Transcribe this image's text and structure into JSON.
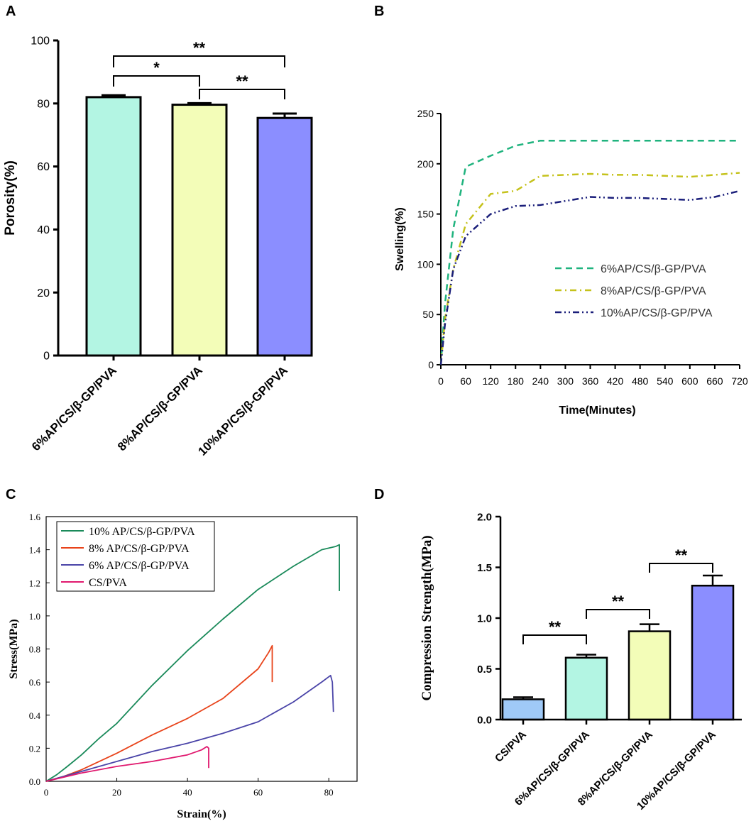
{
  "chart_data": [
    {
      "panel": "A",
      "type": "bar",
      "ylabel": "Porosity(%)",
      "ylim": [
        0,
        100
      ],
      "yticks": [
        "0",
        "20",
        "40",
        "60",
        "80",
        "100"
      ],
      "categories": [
        "6%AP/CS/β-GP/PVA",
        "8%AP/CS/β-GP/PVA",
        "10%AP/CS/β-GP/PVA"
      ],
      "values": [
        82,
        79.6,
        75.4
      ],
      "errors": [
        0.6,
        0.5,
        1.4
      ],
      "colors": [
        "#b3f5e3",
        "#f3fdb8",
        "#8b8eff"
      ],
      "significance": [
        {
          "from": 0,
          "to": 1,
          "label": "*"
        },
        {
          "from": 1,
          "to": 2,
          "label": "**"
        },
        {
          "from": 0,
          "to": 2,
          "label": "**"
        }
      ]
    },
    {
      "panel": "B",
      "type": "line",
      "xlabel": "Time(Minutes)",
      "ylabel": "Swelling(%)",
      "xlim": [
        0,
        720
      ],
      "ylim": [
        0,
        250
      ],
      "xticks": [
        "0",
        "60",
        "120",
        "180",
        "240",
        "300",
        "360",
        "420",
        "480",
        "540",
        "600",
        "660",
        "720"
      ],
      "yticks": [
        "0",
        "50",
        "100",
        "150",
        "200",
        "250"
      ],
      "series": [
        {
          "name": "6%AP/CS/β-GP/PVA",
          "color": "#1fb37e",
          "dash": "dash",
          "x": [
            0,
            10,
            30,
            60,
            120,
            180,
            240,
            300,
            360,
            420,
            480,
            540,
            600,
            660,
            720
          ],
          "y": [
            0,
            60,
            135,
            197,
            208,
            218,
            223,
            223,
            223,
            223,
            223,
            223,
            223,
            223,
            223
          ]
        },
        {
          "name": "8%AP/CS/β-GP/PVA",
          "color": "#c5c21c",
          "dash": "dashdot",
          "x": [
            0,
            10,
            30,
            60,
            120,
            180,
            240,
            300,
            360,
            420,
            480,
            540,
            600,
            660,
            720
          ],
          "y": [
            0,
            45,
            95,
            140,
            170,
            173,
            188,
            189,
            190,
            189,
            189,
            188,
            187,
            189,
            191
          ]
        },
        {
          "name": "10%AP/CS/β-GP/PVA",
          "color": "#1a1e7a",
          "dash": "dashdotdot",
          "x": [
            0,
            10,
            30,
            60,
            120,
            180,
            240,
            300,
            360,
            420,
            480,
            540,
            600,
            660,
            720
          ],
          "y": [
            0,
            40,
            95,
            128,
            150,
            158,
            159,
            163,
            167,
            166,
            166,
            165,
            164,
            167,
            173
          ]
        }
      ]
    },
    {
      "panel": "C",
      "type": "line",
      "xlabel": "Strain(%)",
      "ylabel": "Stress(MPa)",
      "xlim": [
        0,
        88
      ],
      "ylim": [
        0,
        1.6
      ],
      "xticks": [
        "0",
        "20",
        "40",
        "60",
        "80"
      ],
      "yticks": [
        "0.0",
        "0.2",
        "0.4",
        "0.6",
        "0.8",
        "1.0",
        "1.2",
        "1.4",
        "1.6"
      ],
      "series": [
        {
          "name": "10% AP/CS/β-GP/PVA",
          "color": "#1a8a5a",
          "x": [
            0,
            3,
            6,
            10,
            15,
            20,
            30,
            40,
            50,
            60,
            70,
            78,
            82,
            83,
            83
          ],
          "y": [
            0,
            0.04,
            0.09,
            0.16,
            0.26,
            0.35,
            0.58,
            0.79,
            0.98,
            1.16,
            1.3,
            1.4,
            1.42,
            1.43,
            1.15
          ]
        },
        {
          "name": "8% AP/CS/β-GP/PVA",
          "color": "#e8431a",
          "x": [
            0,
            5,
            10,
            20,
            30,
            40,
            50,
            60,
            63,
            64,
            64
          ],
          "y": [
            0,
            0.03,
            0.07,
            0.17,
            0.28,
            0.38,
            0.5,
            0.68,
            0.78,
            0.82,
            0.6
          ]
        },
        {
          "name": "6% AP/CS/β-GP/PVA",
          "color": "#4a44a8",
          "x": [
            0,
            5,
            10,
            20,
            30,
            40,
            50,
            60,
            70,
            78,
            80.5,
            81,
            81.3
          ],
          "y": [
            0,
            0.03,
            0.06,
            0.12,
            0.18,
            0.23,
            0.29,
            0.36,
            0.48,
            0.6,
            0.64,
            0.6,
            0.42
          ]
        },
        {
          "name": "CS/PVA",
          "color": "#e0186e",
          "x": [
            0,
            10,
            20,
            30,
            40,
            44,
            45.5,
            46,
            46
          ],
          "y": [
            0,
            0.05,
            0.09,
            0.12,
            0.16,
            0.19,
            0.21,
            0.2,
            0.08
          ]
        }
      ]
    },
    {
      "panel": "D",
      "type": "bar",
      "ylabel": "Compression Strength(MPa)",
      "ylim": [
        0,
        2.0
      ],
      "yticks": [
        "0.0",
        "0.5",
        "1.0",
        "1.5",
        "2.0"
      ],
      "categories": [
        "CS/PVA",
        "6%AP/CS/β-GP/PVA",
        "8%AP/CS/β-GP/PVA",
        "10%AP/CS/β-GP/PVA"
      ],
      "values": [
        0.2,
        0.61,
        0.87,
        1.32
      ],
      "errors": [
        0.02,
        0.03,
        0.07,
        0.1
      ],
      "colors": [
        "#9fc9f7",
        "#b3f5e3",
        "#f3fdb8",
        "#8b8eff"
      ],
      "significance": [
        {
          "from": 0,
          "to": 1,
          "label": "**"
        },
        {
          "from": 1,
          "to": 2,
          "label": "**"
        },
        {
          "from": 2,
          "to": 3,
          "label": "**"
        }
      ]
    }
  ],
  "panels": {
    "a": "A",
    "b": "B",
    "c": "C",
    "d": "D"
  }
}
